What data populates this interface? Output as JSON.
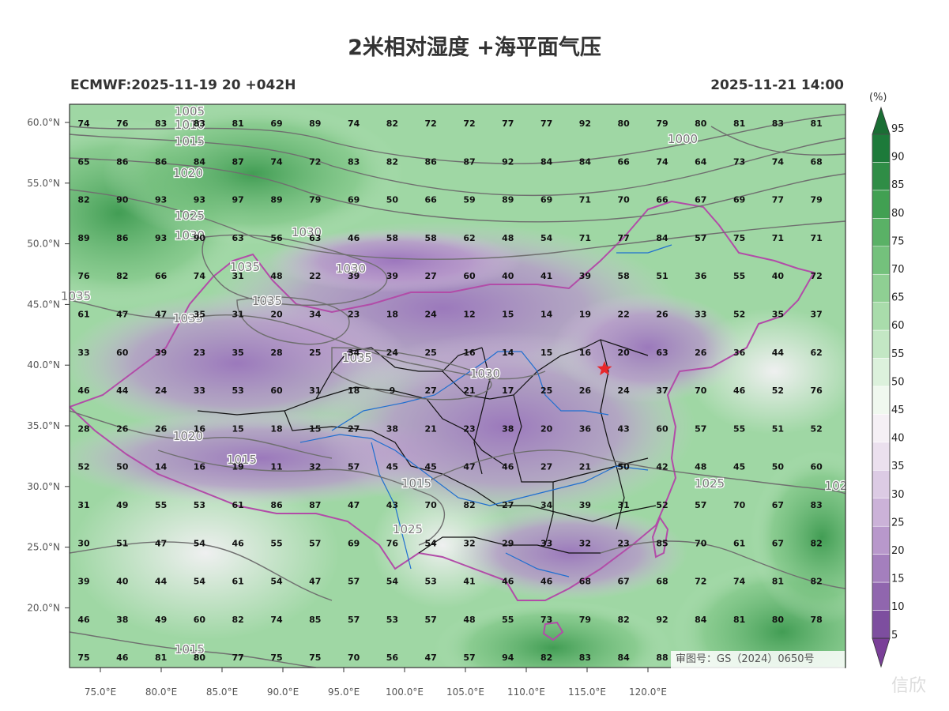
{
  "title": "2米相对湿度 +海平面气压",
  "model_run": "ECMWF:2025-11-19 20 +042H",
  "valid_time": "2025-11-21 14:00",
  "colorbar": {
    "unit": "(%)",
    "ticks": [
      95,
      90,
      85,
      80,
      75,
      70,
      65,
      60,
      55,
      50,
      45,
      40,
      35,
      30,
      25,
      20,
      15,
      10,
      5
    ],
    "colors": [
      "#1d7a3a",
      "#2f8d46",
      "#41a052",
      "#5ab166",
      "#74c17c",
      "#8fcf93",
      "#a9dcab",
      "#c3e7c4",
      "#dcf1dc",
      "#f0f8ef",
      "#f5f0f5",
      "#ebe0ee",
      "#dccbe4",
      "#cbb2d8",
      "#b898cb",
      "#a47fbd",
      "#9066ae",
      "#7d4e9f"
    ]
  },
  "axes": {
    "lat_labels": [
      "60.0°N",
      "55.0°N",
      "50.0°N",
      "45.0°N",
      "40.0°N",
      "35.0°N",
      "30.0°N",
      "25.0°N",
      "20.0°N"
    ],
    "lon_labels": [
      "75.0°E",
      "80.0°E",
      "85.0°E",
      "90.0°E",
      "95.0°E",
      "100.0°E",
      "105.0°E",
      "110.0°E",
      "115.0°E",
      "120.0°E"
    ]
  },
  "humidity_grid": [
    [
      "74",
      "76",
      "83",
      "83",
      "81",
      "69",
      "89",
      "74",
      "82",
      "72",
      "72",
      "77",
      "77",
      "92",
      "80",
      "79",
      "80",
      "81",
      "83",
      "81"
    ],
    [
      "65",
      "86",
      "86",
      "84",
      "87",
      "74",
      "72",
      "83",
      "82",
      "86",
      "87",
      "92",
      "84",
      "84",
      "66",
      "74",
      "64",
      "73",
      "74",
      "68"
    ],
    [
      "82",
      "90",
      "93",
      "93",
      "97",
      "89",
      "79",
      "69",
      "50",
      "66",
      "59",
      "89",
      "69",
      "71",
      "70",
      "66",
      "67",
      "69",
      "77",
      "79"
    ],
    [
      "89",
      "86",
      "93",
      "90",
      "63",
      "56",
      "63",
      "46",
      "58",
      "58",
      "62",
      "48",
      "54",
      "71",
      "77",
      "84",
      "57",
      "75",
      "71",
      "71"
    ],
    [
      "76",
      "82",
      "66",
      "74",
      "31",
      "48",
      "22",
      "39",
      "39",
      "27",
      "60",
      "40",
      "41",
      "39",
      "58",
      "51",
      "36",
      "55",
      "40",
      "72"
    ],
    [
      "61",
      "47",
      "47",
      "35",
      "31",
      "20",
      "34",
      "23",
      "18",
      "24",
      "12",
      "15",
      "14",
      "19",
      "22",
      "26",
      "33",
      "52",
      "35",
      "37"
    ],
    [
      "33",
      "60",
      "39",
      "23",
      "35",
      "28",
      "25",
      "34",
      "24",
      "25",
      "16",
      "14",
      "15",
      "16",
      "20",
      "63",
      "26",
      "36",
      "44",
      "62"
    ],
    [
      "46",
      "44",
      "24",
      "33",
      "53",
      "60",
      "31",
      "18",
      "9",
      "27",
      "21",
      "17",
      "25",
      "26",
      "24",
      "37",
      "70",
      "46",
      "52",
      "76"
    ],
    [
      "28",
      "26",
      "26",
      "16",
      "15",
      "18",
      "15",
      "27",
      "38",
      "21",
      "23",
      "38",
      "20",
      "36",
      "43",
      "60",
      "57",
      "55",
      "51",
      "52"
    ],
    [
      "52",
      "50",
      "14",
      "16",
      "19",
      "11",
      "32",
      "57",
      "45",
      "45",
      "47",
      "46",
      "27",
      "21",
      "50",
      "42",
      "48",
      "45",
      "50",
      "60"
    ],
    [
      "31",
      "49",
      "55",
      "53",
      "61",
      "86",
      "87",
      "47",
      "43",
      "70",
      "82",
      "27",
      "34",
      "39",
      "31",
      "52",
      "57",
      "70",
      "67",
      "83"
    ],
    [
      "30",
      "51",
      "47",
      "54",
      "46",
      "55",
      "57",
      "69",
      "76",
      "54",
      "32",
      "29",
      "33",
      "32",
      "23",
      "85",
      "70",
      "61",
      "67",
      "82"
    ],
    [
      "39",
      "40",
      "44",
      "54",
      "61",
      "54",
      "47",
      "57",
      "54",
      "53",
      "41",
      "46",
      "46",
      "68",
      "67",
      "68",
      "72",
      "74",
      "81",
      "82"
    ],
    [
      "46",
      "38",
      "49",
      "60",
      "82",
      "74",
      "85",
      "57",
      "53",
      "57",
      "48",
      "55",
      "73",
      "79",
      "82",
      "92",
      "84",
      "81",
      "80",
      "78"
    ],
    [
      "75",
      "46",
      "81",
      "80",
      "77",
      "75",
      "75",
      "70",
      "56",
      "47",
      "57",
      "94",
      "82",
      "83",
      "84",
      "88",
      "",
      "",
      "",
      ""
    ]
  ],
  "isobars": [
    {
      "label": "1005"
    },
    {
      "label": "1010"
    },
    {
      "label": "1015"
    },
    {
      "label": "1020"
    },
    {
      "label": "1025"
    },
    {
      "label": "1030"
    },
    {
      "label": "1030"
    },
    {
      "label": "1030"
    },
    {
      "label": "1035"
    },
    {
      "label": "1035"
    },
    {
      "label": "1035"
    },
    {
      "label": "1035"
    },
    {
      "label": "1035"
    },
    {
      "label": "1030"
    },
    {
      "label": "1020"
    },
    {
      "label": "1015"
    },
    {
      "label": "1015"
    },
    {
      "label": "1025"
    },
    {
      "label": "1025"
    },
    {
      "label": "1000"
    },
    {
      "label": "102"
    },
    {
      "label": "1015"
    }
  ],
  "approval_number": "审图号：GS（2024）0650号",
  "watermark": "信欣",
  "marker": "star-icon"
}
